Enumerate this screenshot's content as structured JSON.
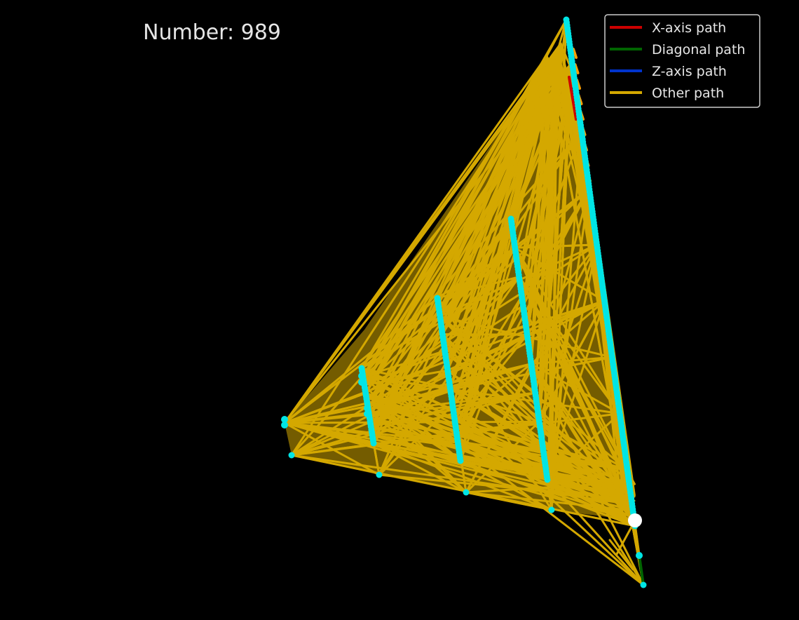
{
  "title": "Number: 989",
  "chart_data": {
    "type": "line",
    "title": "Number: 989",
    "grid": false,
    "legend_position": "top-right",
    "background_color": "#000000",
    "legend": [
      {
        "name": "X-axis path",
        "color": "#cc0000"
      },
      {
        "name": "Diagonal path",
        "color": "#006400"
      },
      {
        "name": "Z-axis path",
        "color": "#0033cc"
      },
      {
        "name": "Other path",
        "color": "#d4a800"
      }
    ],
    "point_color": "#00e5e5",
    "highlight_color": "#ffffff"
  }
}
